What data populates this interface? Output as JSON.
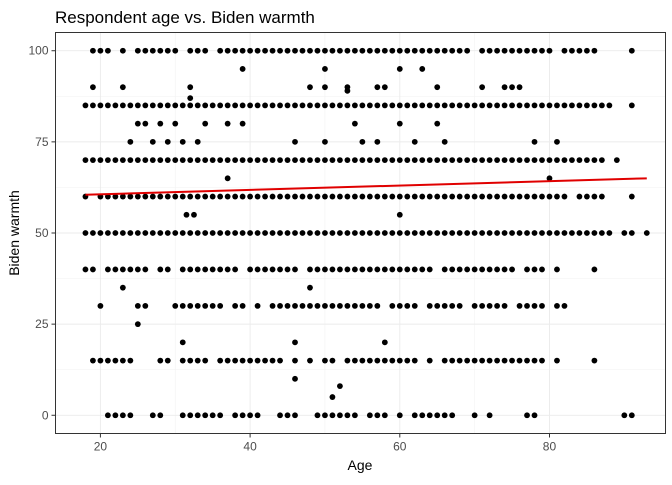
{
  "chart_data": {
    "type": "scatter",
    "title": "Respondent age vs. Biden warmth",
    "xlabel": "Age",
    "ylabel": "Biden warmth",
    "xlim": [
      14,
      95.5
    ],
    "ylim": [
      -5,
      105
    ],
    "x_ticks": [
      20,
      40,
      60,
      80
    ],
    "y_ticks": [
      0,
      25,
      50,
      75,
      100
    ],
    "grid": true,
    "colors": {
      "points": "#000000",
      "trend": "#e00000"
    },
    "trend_line": {
      "x": [
        18,
        93
      ],
      "y": [
        60.5,
        65
      ]
    },
    "rows": [
      {
        "y": 100,
        "x": [
          19,
          20,
          21,
          23,
          25,
          26,
          27,
          28,
          29,
          30,
          32,
          33,
          34,
          36,
          37,
          38,
          39,
          40,
          41,
          42,
          43,
          44,
          45,
          46,
          47,
          48,
          49,
          50,
          51,
          52,
          53,
          54,
          55,
          56,
          57,
          58,
          59,
          60,
          61,
          62,
          63,
          64,
          65,
          66,
          67,
          68,
          69,
          71,
          72,
          73,
          74,
          75,
          76,
          77,
          78,
          79,
          80,
          82,
          83,
          84,
          85,
          86,
          91
        ]
      },
      {
        "y": 95,
        "x": [
          39,
          50,
          60,
          63
        ]
      },
      {
        "y": 90,
        "x": [
          19,
          23,
          32,
          48,
          50,
          53,
          57,
          58,
          65,
          71,
          74,
          75,
          76
        ]
      },
      {
        "y": 89,
        "x": [
          53
        ]
      },
      {
        "y": 87,
        "x": [
          32
        ]
      },
      {
        "y": 85,
        "x": [
          18,
          19,
          20,
          21,
          22,
          23,
          24,
          25,
          26,
          27,
          28,
          29,
          30,
          31,
          32,
          33,
          34,
          35,
          36,
          37,
          38,
          39,
          40,
          41,
          42,
          43,
          44,
          45,
          46,
          47,
          48,
          49,
          50,
          51,
          52,
          53,
          54,
          55,
          56,
          57,
          58,
          59,
          60,
          61,
          62,
          63,
          64,
          65,
          66,
          67,
          68,
          69,
          70,
          71,
          72,
          73,
          74,
          75,
          76,
          77,
          78,
          79,
          80,
          81,
          82,
          83,
          84,
          85,
          86,
          87,
          88,
          91
        ]
      },
      {
        "y": 80,
        "x": [
          25,
          26,
          28,
          30,
          34,
          37,
          39,
          54,
          60,
          65
        ]
      },
      {
        "y": 75,
        "x": [
          24,
          27,
          29,
          31,
          33,
          46,
          50,
          55,
          57,
          62,
          66,
          78,
          81
        ]
      },
      {
        "y": 70,
        "x": [
          18,
          19,
          20,
          21,
          22,
          23,
          24,
          25,
          26,
          27,
          28,
          29,
          30,
          31,
          32,
          33,
          34,
          35,
          36,
          37,
          38,
          39,
          40,
          41,
          42,
          43,
          44,
          45,
          46,
          47,
          48,
          49,
          50,
          51,
          52,
          53,
          54,
          55,
          56,
          57,
          58,
          59,
          60,
          61,
          62,
          63,
          64,
          65,
          66,
          67,
          68,
          69,
          70,
          71,
          72,
          73,
          74,
          75,
          76,
          77,
          78,
          79,
          80,
          81,
          82,
          83,
          84,
          85,
          86,
          87,
          89
        ]
      },
      {
        "y": 65,
        "x": [
          37,
          80
        ]
      },
      {
        "y": 60,
        "x": [
          18,
          20,
          21,
          22,
          23,
          24,
          25,
          26,
          27,
          28,
          29,
          30,
          31,
          32,
          33,
          34,
          35,
          36,
          37,
          38,
          39,
          40,
          41,
          42,
          43,
          44,
          45,
          46,
          47,
          48,
          49,
          50,
          51,
          52,
          53,
          54,
          55,
          56,
          57,
          58,
          59,
          60,
          61,
          62,
          63,
          64,
          65,
          66,
          67,
          68,
          69,
          70,
          71,
          72,
          73,
          74,
          75,
          76,
          77,
          78,
          79,
          80,
          81,
          82,
          84,
          85,
          86,
          87,
          91
        ]
      },
      {
        "y": 55,
        "x": [
          31.5,
          32.5,
          60
        ]
      },
      {
        "y": 50,
        "x": [
          18,
          19,
          20,
          21,
          22,
          23,
          24,
          25,
          26,
          27,
          28,
          29,
          30,
          31,
          32,
          33,
          34,
          35,
          36,
          37,
          38,
          39,
          40,
          41,
          42,
          43,
          44,
          45,
          46,
          47,
          48,
          49,
          50,
          51,
          52,
          53,
          54,
          55,
          56,
          57,
          58,
          59,
          60,
          61,
          62,
          63,
          64,
          65,
          66,
          67,
          68,
          69,
          70,
          71,
          72,
          73,
          74,
          75,
          76,
          77,
          78,
          79,
          80,
          81,
          82,
          83,
          84,
          85,
          86,
          87,
          88,
          90,
          91,
          93
        ]
      },
      {
        "y": 40,
        "x": [
          18,
          19,
          21,
          22,
          23,
          24,
          25,
          26,
          28,
          29,
          31,
          32,
          33,
          34,
          35,
          36,
          37,
          38,
          40,
          41,
          42,
          43,
          44,
          45,
          46,
          48,
          49,
          50,
          51,
          52,
          53,
          54,
          55,
          56,
          57,
          58,
          59,
          60,
          61,
          62,
          63,
          64,
          66,
          67,
          68,
          69,
          70,
          71,
          72,
          73,
          74,
          75,
          77,
          78,
          79,
          81,
          86
        ]
      },
      {
        "y": 35,
        "x": [
          23,
          48
        ]
      },
      {
        "y": 30,
        "x": [
          20,
          25,
          26,
          30,
          31,
          32,
          33,
          34,
          35,
          36,
          38,
          39,
          41,
          43,
          44,
          45,
          46,
          47,
          48,
          49,
          50,
          51,
          52,
          53,
          54,
          55,
          56,
          57,
          59,
          60,
          61,
          62,
          64,
          65,
          66,
          67,
          68,
          70,
          71,
          72,
          73,
          74,
          76,
          77,
          78,
          79,
          81,
          82
        ]
      },
      {
        "y": 25,
        "x": [
          25
        ]
      },
      {
        "y": 20,
        "x": [
          31,
          46,
          58
        ]
      },
      {
        "y": 15,
        "x": [
          19,
          20,
          21,
          22,
          23,
          24,
          28,
          29,
          31,
          32,
          33,
          34,
          36,
          37,
          38,
          39,
          40,
          41,
          42,
          43,
          44,
          46,
          48,
          50,
          51,
          53,
          54,
          55,
          56,
          57,
          58,
          59,
          60,
          61,
          62,
          64,
          66,
          67,
          68,
          69,
          70,
          71,
          72,
          73,
          74,
          75,
          76,
          77,
          78,
          79,
          81,
          86
        ]
      },
      {
        "y": 10,
        "x": [
          46
        ]
      },
      {
        "y": 8,
        "x": [
          52
        ]
      },
      {
        "y": 5,
        "x": [
          51
        ]
      },
      {
        "y": 0,
        "x": [
          21,
          22,
          23,
          24,
          27,
          28,
          31,
          32,
          33,
          34,
          35,
          36,
          38,
          39,
          40,
          41,
          44,
          45,
          46,
          49,
          50,
          51,
          52,
          53,
          54,
          56,
          57,
          58,
          60,
          62,
          63,
          64,
          65,
          66,
          67,
          70,
          72,
          77,
          78,
          90,
          91
        ]
      }
    ]
  }
}
